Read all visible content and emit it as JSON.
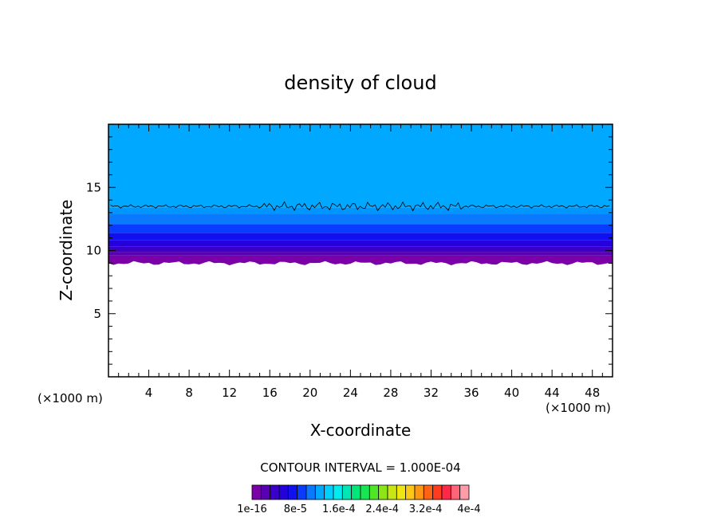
{
  "chart_data": {
    "type": "heatmap",
    "title": "density of cloud",
    "xlabel": "X-coordinate",
    "ylabel": "Z-coordinate",
    "x_unit": "(×1000 m)",
    "y_unit": "(×1000 m)",
    "xlim": [
      0,
      50
    ],
    "ylim": [
      0,
      20
    ],
    "xticks": [
      4,
      8,
      12,
      16,
      20,
      24,
      28,
      32,
      36,
      40,
      44,
      48
    ],
    "yticks": [
      5,
      10,
      15
    ],
    "contour_interval_text": "CONTOUR INTERVAL = 1.000E-04",
    "colorbar_tick_labels": [
      "1e-16",
      "8e-5",
      "1.6e-4",
      "2.4e-4",
      "3.2e-4",
      "4e-4"
    ],
    "colorbar_colors": [
      "#7b00a8",
      "#5a00b4",
      "#3a00c8",
      "#2400dc",
      "#1010f0",
      "#0a3cff",
      "#0a78ff",
      "#00a8ff",
      "#00cfff",
      "#00ecf0",
      "#00e6b4",
      "#00e678",
      "#18e650",
      "#50e628",
      "#8ce614",
      "#c8e614",
      "#f0e614",
      "#ffc814",
      "#ff9614",
      "#ff6414",
      "#ff3c1e",
      "#ff2846",
      "#ff6478",
      "#ff9ca8"
    ],
    "bands": [
      {
        "z_bottom": 9.0,
        "z_top": 9.6,
        "color": "#7b00a8"
      },
      {
        "z_bottom": 9.6,
        "z_top": 9.9,
        "color": "#5a00b4"
      },
      {
        "z_bottom": 9.9,
        "z_top": 10.3,
        "color": "#3a00c8"
      },
      {
        "z_bottom": 10.3,
        "z_top": 10.8,
        "color": "#2400dc"
      },
      {
        "z_bottom": 10.8,
        "z_top": 11.4,
        "color": "#1010f0"
      },
      {
        "z_bottom": 11.4,
        "z_top": 12.1,
        "color": "#0a3cff"
      },
      {
        "z_bottom": 12.1,
        "z_top": 12.9,
        "color": "#0a78ff"
      },
      {
        "z_bottom": 12.9,
        "z_top": 13.4,
        "color": "#0096ff"
      },
      {
        "z_bottom": 13.4,
        "z_top": 20.0,
        "color": "#00a8ff"
      }
    ],
    "contour_level_z": 13.5,
    "grid": false
  }
}
